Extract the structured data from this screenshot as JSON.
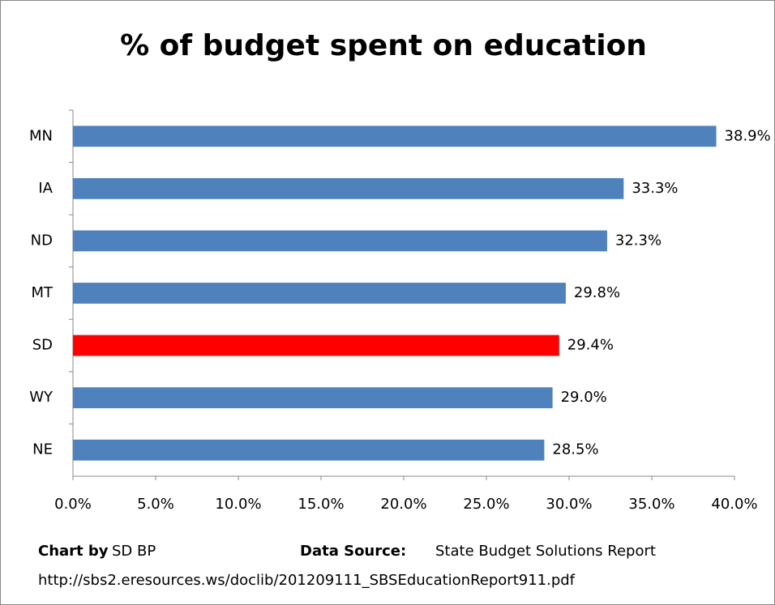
{
  "chart_data": {
    "type": "bar",
    "orientation": "horizontal",
    "title": "% of budget spent on education",
    "categories": [
      "MN",
      "IA",
      "ND",
      "MT",
      "SD",
      "WY",
      "NE"
    ],
    "values": [
      38.9,
      33.3,
      32.3,
      29.8,
      29.4,
      29.0,
      28.5
    ],
    "value_labels": [
      "38.9%",
      "33.3%",
      "32.3%",
      "29.8%",
      "29.4%",
      "29.0%",
      "28.5%"
    ],
    "colors": [
      "#4f81bd",
      "#4f81bd",
      "#4f81bd",
      "#4f81bd",
      "#ff0000",
      "#4f81bd",
      "#4f81bd"
    ],
    "xlim": [
      0,
      40
    ],
    "xticks": [
      {
        "value": 0,
        "label": "0.0%"
      },
      {
        "value": 5,
        "label": "5.0%"
      },
      {
        "value": 10,
        "label": "10.0%"
      },
      {
        "value": 15,
        "label": "15.0%"
      },
      {
        "value": 20,
        "label": "20.0%"
      },
      {
        "value": 25,
        "label": "25.0%"
      },
      {
        "value": 30,
        "label": "30.0%"
      },
      {
        "value": 35,
        "label": "35.0%"
      },
      {
        "value": 40,
        "label": "40.0%"
      }
    ],
    "grid": false,
    "footer": {
      "credit_label": "Chart by",
      "credit": "SD BP",
      "source_label": "Data Source:",
      "source": "State Budget Solutions Report",
      "url": "http://sbs2.eresources.ws/doclib/201209111_SBSEducationReport911.pdf"
    }
  }
}
